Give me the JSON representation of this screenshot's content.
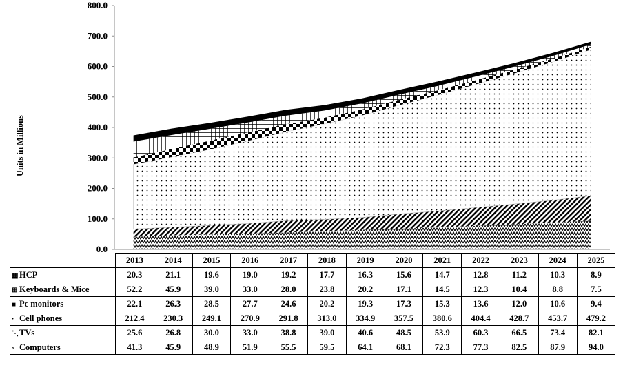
{
  "chart_data": {
    "type": "area",
    "stacked": true,
    "ylabel": "Units in Millions",
    "xlabel": "",
    "title": "",
    "ylim": [
      0,
      800
    ],
    "yticks": [
      "0.0",
      "100.0",
      "200.0",
      "300.0",
      "400.0",
      "500.0",
      "600.0",
      "700.0",
      "800.0"
    ],
    "categories": [
      "2013",
      "2014",
      "2015",
      "2016",
      "2017",
      "2018",
      "2019",
      "2020",
      "2021",
      "2022",
      "2023",
      "2024",
      "2025"
    ],
    "legend_placement": "data-table",
    "series": [
      {
        "name": "Computers",
        "key_icon": "sparkle-icon",
        "pattern": "zigzag",
        "values": [
          41.3,
          45.9,
          48.9,
          51.9,
          55.5,
          59.5,
          64.1,
          68.1,
          72.3,
          77.3,
          82.5,
          87.9,
          94.0
        ]
      },
      {
        "name": "TVs",
        "key_icon": "diagonal-stripes-icon",
        "pattern": "diagonal",
        "values": [
          25.6,
          26.8,
          30.0,
          33.0,
          38.8,
          39.0,
          40.6,
          48.5,
          53.9,
          60.3,
          66.5,
          73.4,
          82.1
        ]
      },
      {
        "name": "Cell phones",
        "key_icon": "dot-icon",
        "pattern": "dots",
        "values": [
          212.4,
          230.3,
          249.1,
          270.9,
          291.8,
          313.0,
          334.9,
          357.5,
          380.6,
          404.4,
          428.7,
          453.7,
          479.2
        ]
      },
      {
        "name": "Pc monitors",
        "key_icon": "square-icon",
        "pattern": "checker",
        "values": [
          22.1,
          26.3,
          28.5,
          27.7,
          24.6,
          20.2,
          19.3,
          17.3,
          15.3,
          13.6,
          12.0,
          10.6,
          9.4
        ]
      },
      {
        "name": "Keyboards & Mice",
        "key_icon": "grid-icon",
        "pattern": "grid",
        "values": [
          52.2,
          45.9,
          39.0,
          33.0,
          28.0,
          23.8,
          20.2,
          17.1,
          14.5,
          12.3,
          10.4,
          8.8,
          7.5
        ]
      },
      {
        "name": "HCP",
        "key_icon": "solid-icon",
        "pattern": "solid",
        "values": [
          20.3,
          21.1,
          19.6,
          19.0,
          19.2,
          17.7,
          16.3,
          15.6,
          14.7,
          12.8,
          11.2,
          10.3,
          8.9
        ]
      }
    ],
    "table_rows": [
      {
        "label": "HCP",
        "key": "▦",
        "values": [
          "20.3",
          "21.1",
          "19.6",
          "19.0",
          "19.2",
          "17.7",
          "16.3",
          "15.6",
          "14.7",
          "12.8",
          "11.2",
          "10.3",
          "8.9"
        ]
      },
      {
        "label": "Keyboards & Mice",
        "key": "⊞",
        "values": [
          "52.2",
          "45.9",
          "39.0",
          "33.0",
          "28.0",
          "23.8",
          "20.2",
          "17.1",
          "14.5",
          "12.3",
          "10.4",
          "8.8",
          "7.5"
        ]
      },
      {
        "label": "Pc monitors",
        "key": "■",
        "values": [
          "22.1",
          "26.3",
          "28.5",
          "27.7",
          "24.6",
          "20.2",
          "19.3",
          "17.3",
          "15.3",
          "13.6",
          "12.0",
          "10.6",
          "9.4"
        ]
      },
      {
        "label": "Cell phones",
        "key": "·",
        "values": [
          "212.4",
          "230.3",
          "249.1",
          "270.9",
          "291.8",
          "313.0",
          "334.9",
          "357.5",
          "380.6",
          "404.4",
          "428.7",
          "453.7",
          "479.2"
        ]
      },
      {
        "label": "TVs",
        "key": "⋱",
        "values": [
          "25.6",
          "26.8",
          "30.0",
          "33.0",
          "38.8",
          "39.0",
          "40.6",
          "48.5",
          "53.9",
          "60.3",
          "66.5",
          "73.4",
          "82.1"
        ]
      },
      {
        "label": "Computers",
        "key": "⸗",
        "values": [
          "41.3",
          "45.9",
          "48.9",
          "51.9",
          "55.5",
          "59.5",
          "64.1",
          "68.1",
          "72.3",
          "77.3",
          "82.5",
          "87.9",
          "94.0"
        ]
      }
    ]
  }
}
